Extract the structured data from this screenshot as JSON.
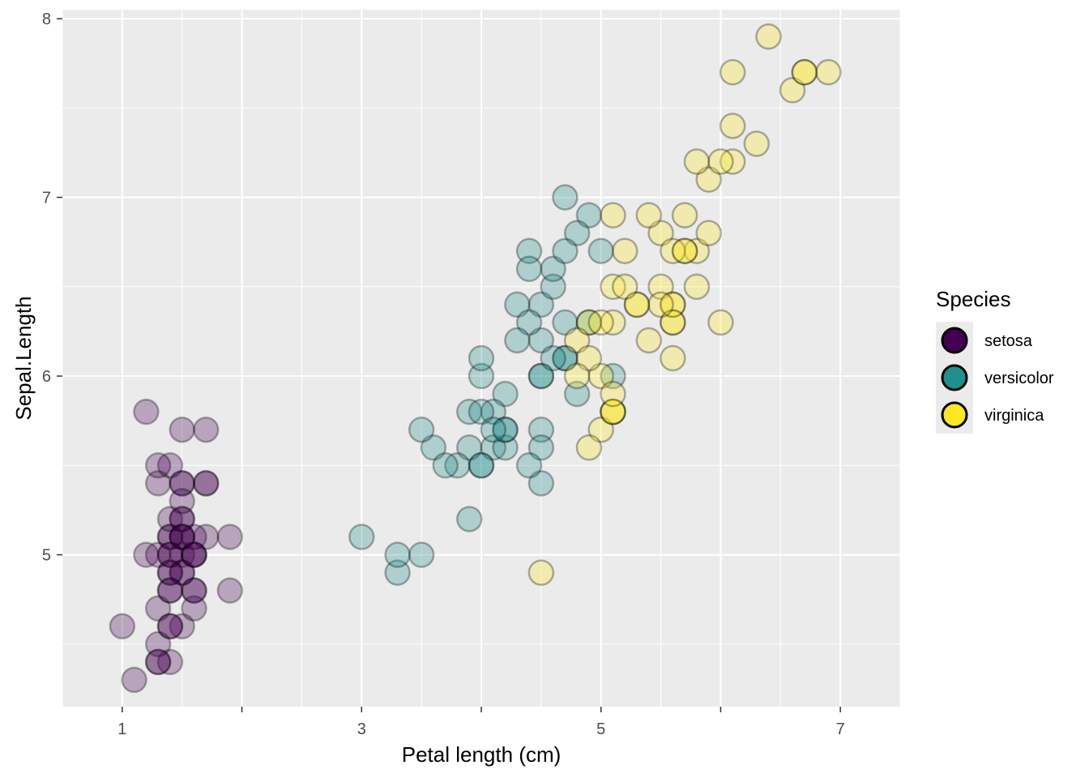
{
  "chart_data": {
    "type": "scatter",
    "title": "",
    "xlabel": "Petal length (cm)",
    "ylabel": "Sepal.Length",
    "xlim": [
      0.5,
      7.5
    ],
    "ylim": [
      4.15,
      8.05
    ],
    "x_ticks": [
      1,
      3,
      5,
      7
    ],
    "x_tick_labels": [
      "1",
      "3",
      "5",
      "7"
    ],
    "x_minor_ticks": [
      2,
      4,
      6
    ],
    "y_ticks": [
      5,
      6,
      7,
      8
    ],
    "y_tick_labels": [
      "5",
      "6",
      "7",
      "8"
    ],
    "grid": true,
    "background": "#ebebeb",
    "point_alpha": 0.3,
    "legend": {
      "title": "Species",
      "position": "right",
      "entries": [
        "setosa",
        "versicolor",
        "virginica"
      ]
    },
    "series": [
      {
        "name": "setosa",
        "color": "#440154",
        "points": [
          [
            1.4,
            5.1
          ],
          [
            1.4,
            4.9
          ],
          [
            1.3,
            4.7
          ],
          [
            1.5,
            4.6
          ],
          [
            1.4,
            5.0
          ],
          [
            1.7,
            5.4
          ],
          [
            1.4,
            4.6
          ],
          [
            1.5,
            5.0
          ],
          [
            1.4,
            4.4
          ],
          [
            1.5,
            4.9
          ],
          [
            1.5,
            5.4
          ],
          [
            1.6,
            4.8
          ],
          [
            1.4,
            4.8
          ],
          [
            1.1,
            4.3
          ],
          [
            1.2,
            5.8
          ],
          [
            1.5,
            5.7
          ],
          [
            1.3,
            5.4
          ],
          [
            1.4,
            5.1
          ],
          [
            1.7,
            5.7
          ],
          [
            1.5,
            5.1
          ],
          [
            1.7,
            5.4
          ],
          [
            1.5,
            5.1
          ],
          [
            1.0,
            4.6
          ],
          [
            1.7,
            5.1
          ],
          [
            1.9,
            4.8
          ],
          [
            1.6,
            5.0
          ],
          [
            1.6,
            5.0
          ],
          [
            1.5,
            5.2
          ],
          [
            1.4,
            5.2
          ],
          [
            1.6,
            4.7
          ],
          [
            1.6,
            4.8
          ],
          [
            1.5,
            5.4
          ],
          [
            1.5,
            5.2
          ],
          [
            1.4,
            5.5
          ],
          [
            1.5,
            4.9
          ],
          [
            1.2,
            5.0
          ],
          [
            1.3,
            5.5
          ],
          [
            1.4,
            4.9
          ],
          [
            1.3,
            4.4
          ],
          [
            1.5,
            5.1
          ],
          [
            1.3,
            5.0
          ],
          [
            1.3,
            4.5
          ],
          [
            1.3,
            4.4
          ],
          [
            1.6,
            5.0
          ],
          [
            1.9,
            5.1
          ],
          [
            1.4,
            4.8
          ],
          [
            1.6,
            5.1
          ],
          [
            1.4,
            4.6
          ],
          [
            1.5,
            5.3
          ],
          [
            1.4,
            5.0
          ]
        ]
      },
      {
        "name": "versicolor",
        "color": "#21908c",
        "points": [
          [
            4.7,
            7.0
          ],
          [
            4.5,
            6.4
          ],
          [
            4.9,
            6.9
          ],
          [
            4.0,
            5.5
          ],
          [
            4.6,
            6.5
          ],
          [
            4.5,
            5.7
          ],
          [
            4.7,
            6.3
          ],
          [
            3.3,
            4.9
          ],
          [
            4.6,
            6.6
          ],
          [
            3.9,
            5.2
          ],
          [
            3.5,
            5.0
          ],
          [
            4.2,
            5.9
          ],
          [
            4.0,
            6.0
          ],
          [
            4.7,
            6.1
          ],
          [
            3.6,
            5.6
          ],
          [
            4.4,
            6.7
          ],
          [
            4.5,
            5.6
          ],
          [
            4.1,
            5.8
          ],
          [
            4.5,
            6.2
          ],
          [
            3.9,
            5.6
          ],
          [
            4.8,
            5.9
          ],
          [
            4.0,
            6.1
          ],
          [
            4.9,
            6.3
          ],
          [
            4.7,
            6.1
          ],
          [
            4.3,
            6.4
          ],
          [
            4.4,
            6.6
          ],
          [
            4.8,
            6.8
          ],
          [
            5.0,
            6.7
          ],
          [
            4.5,
            6.0
          ],
          [
            3.5,
            5.7
          ],
          [
            3.8,
            5.5
          ],
          [
            3.7,
            5.5
          ],
          [
            3.9,
            5.8
          ],
          [
            5.1,
            6.0
          ],
          [
            4.5,
            5.4
          ],
          [
            4.5,
            6.0
          ],
          [
            4.7,
            6.7
          ],
          [
            4.4,
            6.3
          ],
          [
            4.1,
            5.6
          ],
          [
            4.0,
            5.5
          ],
          [
            4.4,
            5.5
          ],
          [
            4.6,
            6.1
          ],
          [
            4.0,
            5.8
          ],
          [
            3.3,
            5.0
          ],
          [
            4.2,
            5.6
          ],
          [
            4.2,
            5.7
          ],
          [
            4.2,
            5.7
          ],
          [
            4.3,
            6.2
          ],
          [
            3.0,
            5.1
          ],
          [
            4.1,
            5.7
          ]
        ]
      },
      {
        "name": "virginica",
        "color": "#fde725",
        "points": [
          [
            6.0,
            6.3
          ],
          [
            5.1,
            5.8
          ],
          [
            5.9,
            7.1
          ],
          [
            5.6,
            6.3
          ],
          [
            5.8,
            6.5
          ],
          [
            6.6,
            7.6
          ],
          [
            4.5,
            4.9
          ],
          [
            6.3,
            7.3
          ],
          [
            5.8,
            6.7
          ],
          [
            6.1,
            7.2
          ],
          [
            5.1,
            6.5
          ],
          [
            5.3,
            6.4
          ],
          [
            5.5,
            6.8
          ],
          [
            5.0,
            5.7
          ],
          [
            5.1,
            5.8
          ],
          [
            5.3,
            6.4
          ],
          [
            5.5,
            6.5
          ],
          [
            6.7,
            7.7
          ],
          [
            6.9,
            7.7
          ],
          [
            5.0,
            6.0
          ],
          [
            5.7,
            6.9
          ],
          [
            4.9,
            5.6
          ],
          [
            6.7,
            7.7
          ],
          [
            4.9,
            6.3
          ],
          [
            5.7,
            6.7
          ],
          [
            6.0,
            7.2
          ],
          [
            4.8,
            6.2
          ],
          [
            4.9,
            6.1
          ],
          [
            5.6,
            6.4
          ],
          [
            5.8,
            7.2
          ],
          [
            6.1,
            7.4
          ],
          [
            6.4,
            7.9
          ],
          [
            5.6,
            6.4
          ],
          [
            5.1,
            6.3
          ],
          [
            5.6,
            6.1
          ],
          [
            6.1,
            7.7
          ],
          [
            5.6,
            6.3
          ],
          [
            5.5,
            6.4
          ],
          [
            4.8,
            6.0
          ],
          [
            5.4,
            6.9
          ],
          [
            5.6,
            6.7
          ],
          [
            5.1,
            6.9
          ],
          [
            5.1,
            5.8
          ],
          [
            5.9,
            6.8
          ],
          [
            5.7,
            6.7
          ],
          [
            5.2,
            6.7
          ],
          [
            5.0,
            6.3
          ],
          [
            5.2,
            6.5
          ],
          [
            5.4,
            6.2
          ],
          [
            5.1,
            5.9
          ]
        ]
      }
    ]
  }
}
